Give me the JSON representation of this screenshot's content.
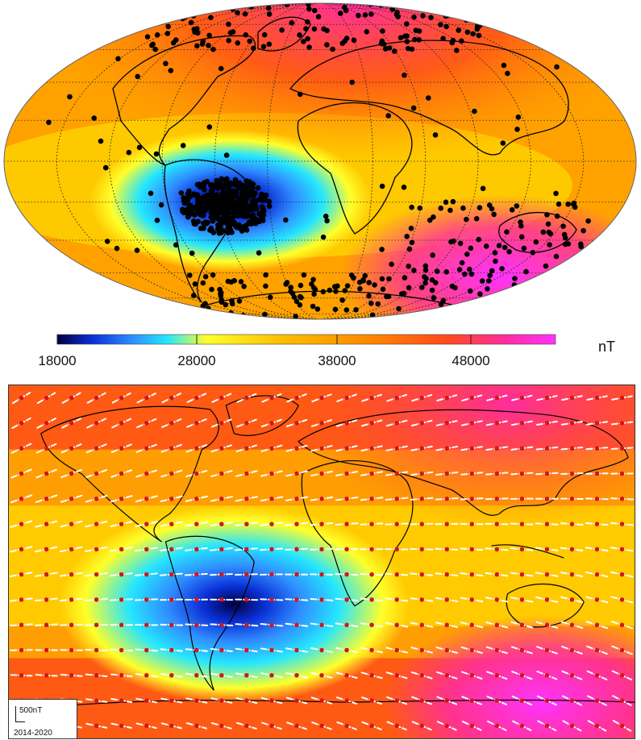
{
  "colorbar": {
    "ticks": [
      "18000",
      "28000",
      "38000",
      "48000"
    ],
    "unit": "nT",
    "stops": [
      "#000040",
      "#0a2fd6",
      "#2f8cff",
      "#25e6ff",
      "#ffff2a",
      "#ffbe00",
      "#ff8a00",
      "#ff4a1a",
      "#ff2ca0",
      "#ff33ff"
    ]
  },
  "top_map": {
    "projection": "Mollweide",
    "scale_min": 18000,
    "scale_max": 55000,
    "background_field": "total magnetic field intensity",
    "observation_points": "black dots"
  },
  "bottom_map": {
    "projection": "equirectangular",
    "vector_color": "#ffffff",
    "grid_point_color": "#d01818"
  },
  "legend": {
    "scale_text": "500nT",
    "period_text": "2014-2020"
  }
}
